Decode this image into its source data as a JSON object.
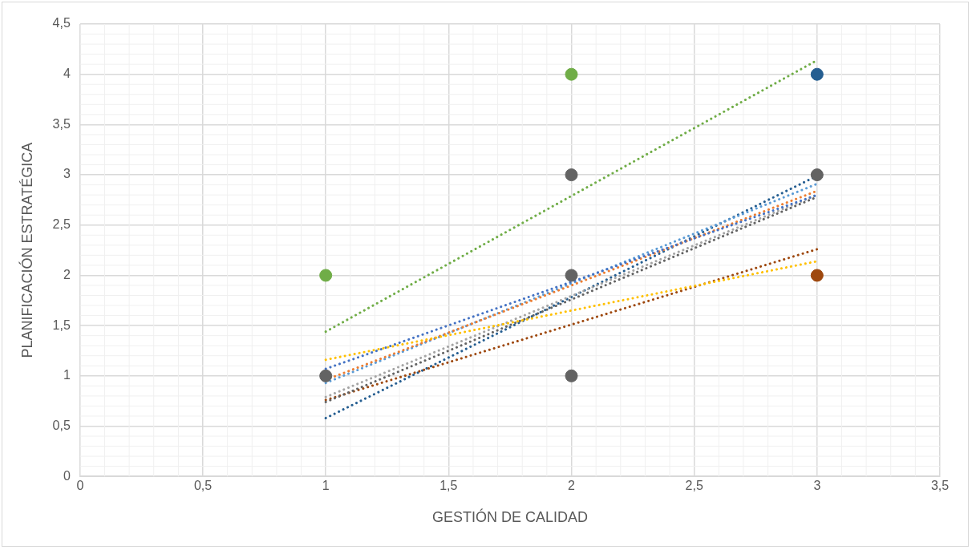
{
  "chart_data": {
    "type": "scatter",
    "xlabel": "GESTIÓN DE CALIDAD",
    "ylabel": "PLANIFICACIÓN ESTRATÉGICA",
    "xlim": [
      0,
      3.5
    ],
    "xticks": [
      {
        "value": 0,
        "label": "0"
      },
      {
        "value": 0.5,
        "label": "0,5"
      },
      {
        "value": 1,
        "label": "1"
      },
      {
        "value": 1.5,
        "label": "1,5"
      },
      {
        "value": 2,
        "label": "2"
      },
      {
        "value": 2.5,
        "label": "2,5"
      },
      {
        "value": 3,
        "label": "3"
      },
      {
        "value": 3.5,
        "label": "3,5"
      }
    ],
    "ylim": [
      0,
      4.5
    ],
    "yticks": [
      {
        "value": 0,
        "label": "0"
      },
      {
        "value": 0.5,
        "label": "0,5"
      },
      {
        "value": 1,
        "label": "1"
      },
      {
        "value": 1.5,
        "label": "1,5"
      },
      {
        "value": 2,
        "label": "2"
      },
      {
        "value": 2.5,
        "label": "2,5"
      },
      {
        "value": 3,
        "label": "3"
      },
      {
        "value": 3.5,
        "label": "3,5"
      },
      {
        "value": 4,
        "label": "4"
      },
      {
        "value": 4.5,
        "label": "4,5"
      }
    ],
    "grid": true,
    "legend": false,
    "marker": "circle",
    "series": [
      {
        "type": "line",
        "line_style": "dotted",
        "marker": "none",
        "color": "#70ad47",
        "x": [
          1,
          3
        ],
        "values": [
          1.44,
          4.14
        ]
      },
      {
        "type": "line",
        "line_style": "dotted",
        "marker": "none",
        "color": "#ffc000",
        "x": [
          1,
          3
        ],
        "values": [
          1.16,
          2.14
        ]
      },
      {
        "type": "line",
        "line_style": "dotted",
        "marker": "none",
        "color": "#4472c4",
        "x": [
          1,
          3
        ],
        "values": [
          1.07,
          2.8
        ]
      },
      {
        "type": "line",
        "line_style": "dotted",
        "marker": "none",
        "color": "#ed7d31",
        "x": [
          1,
          3
        ],
        "values": [
          0.96,
          2.84
        ]
      },
      {
        "type": "line",
        "line_style": "dotted",
        "marker": "none",
        "color": "#5b9bd5",
        "x": [
          1,
          3
        ],
        "values": [
          0.93,
          2.91
        ]
      },
      {
        "type": "line",
        "line_style": "dotted",
        "marker": "none",
        "color": "#a5a5a5",
        "x": [
          1,
          3
        ],
        "values": [
          0.79,
          2.8
        ]
      },
      {
        "type": "line",
        "line_style": "dotted",
        "marker": "none",
        "color": "#636363",
        "x": [
          1,
          3
        ],
        "values": [
          0.74,
          2.78
        ]
      },
      {
        "type": "line",
        "line_style": "dotted",
        "marker": "none",
        "color": "#9e480e",
        "x": [
          1,
          3
        ],
        "values": [
          0.76,
          2.26
        ]
      },
      {
        "type": "line",
        "line_style": "dotted",
        "marker": "none",
        "color": "#255e91",
        "x": [
          1,
          3
        ],
        "values": [
          0.58,
          2.99
        ]
      },
      {
        "type": "scatter",
        "color": "#70ad47",
        "x": [
          1,
          2
        ],
        "values": [
          2,
          4
        ]
      },
      {
        "type": "scatter",
        "color": "#636363",
        "x": [
          1,
          2,
          2,
          2,
          3
        ],
        "values": [
          1,
          3,
          2,
          1,
          3
        ]
      },
      {
        "type": "scatter",
        "color": "#255e91",
        "x": [
          3
        ],
        "values": [
          4
        ]
      },
      {
        "type": "scatter",
        "color": "#9e480e",
        "x": [
          3
        ],
        "values": [
          2
        ]
      }
    ]
  }
}
